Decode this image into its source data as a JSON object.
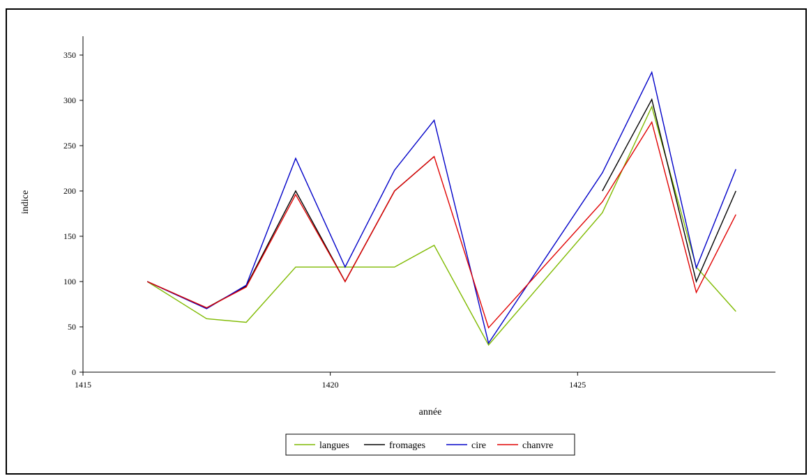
{
  "chart_data": {
    "type": "line",
    "title": "",
    "xlabel": "année",
    "ylabel": "indice",
    "xlim": [
      1415,
      1429
    ],
    "ylim": [
      0,
      350
    ],
    "x_ticks": [
      "1415",
      "1420",
      "1425"
    ],
    "y_ticks": [
      "0",
      "50",
      "100",
      "150",
      "200",
      "250",
      "300",
      "350"
    ],
    "grid": false,
    "legend_position": "bottom",
    "series": [
      {
        "name": "langues",
        "color": "#7fba00",
        "points": [
          [
            1416.3,
            100
          ],
          [
            1417.5,
            59
          ],
          [
            1418.3,
            55
          ],
          [
            1419.3,
            116
          ],
          [
            1420.3,
            116
          ],
          [
            1421.3,
            116
          ],
          [
            1422.1,
            140
          ],
          [
            1423.2,
            30
          ],
          [
            1425.5,
            176
          ],
          [
            1426.5,
            293
          ],
          [
            1427.4,
            116
          ],
          [
            1428.2,
            67
          ]
        ]
      },
      {
        "name": "fromages",
        "color": "#000000",
        "segments": [
          [
            [
              1416.3,
              100
            ],
            [
              1417.5,
              71
            ],
            [
              1418.3,
              95
            ],
            [
              1419.3,
              200
            ],
            [
              1420.3,
              100
            ],
            [
              1421.3,
              200
            ],
            [
              1422.1,
              238
            ]
          ],
          [
            [
              1425.5,
              200
            ],
            [
              1426.5,
              301
            ],
            [
              1427.4,
              100
            ],
            [
              1428.2,
              200
            ]
          ]
        ]
      },
      {
        "name": "cire",
        "color": "#0000c8",
        "points": [
          [
            1416.3,
            100
          ],
          [
            1417.5,
            70
          ],
          [
            1418.3,
            96
          ],
          [
            1419.3,
            236
          ],
          [
            1420.3,
            116
          ],
          [
            1421.3,
            223
          ],
          [
            1422.1,
            278
          ],
          [
            1423.2,
            32
          ],
          [
            1425.5,
            220
          ],
          [
            1426.5,
            331
          ],
          [
            1427.4,
            115
          ],
          [
            1428.2,
            224
          ]
        ]
      },
      {
        "name": "chanvre",
        "color": "#e00000",
        "points": [
          [
            1416.3,
            100
          ],
          [
            1417.5,
            71
          ],
          [
            1418.3,
            94
          ],
          [
            1419.3,
            196
          ],
          [
            1420.3,
            100
          ],
          [
            1421.3,
            200
          ],
          [
            1422.1,
            238
          ],
          [
            1423.2,
            49
          ],
          [
            1425.5,
            188
          ],
          [
            1426.5,
            276
          ],
          [
            1427.4,
            88
          ],
          [
            1428.2,
            174
          ]
        ]
      }
    ]
  }
}
